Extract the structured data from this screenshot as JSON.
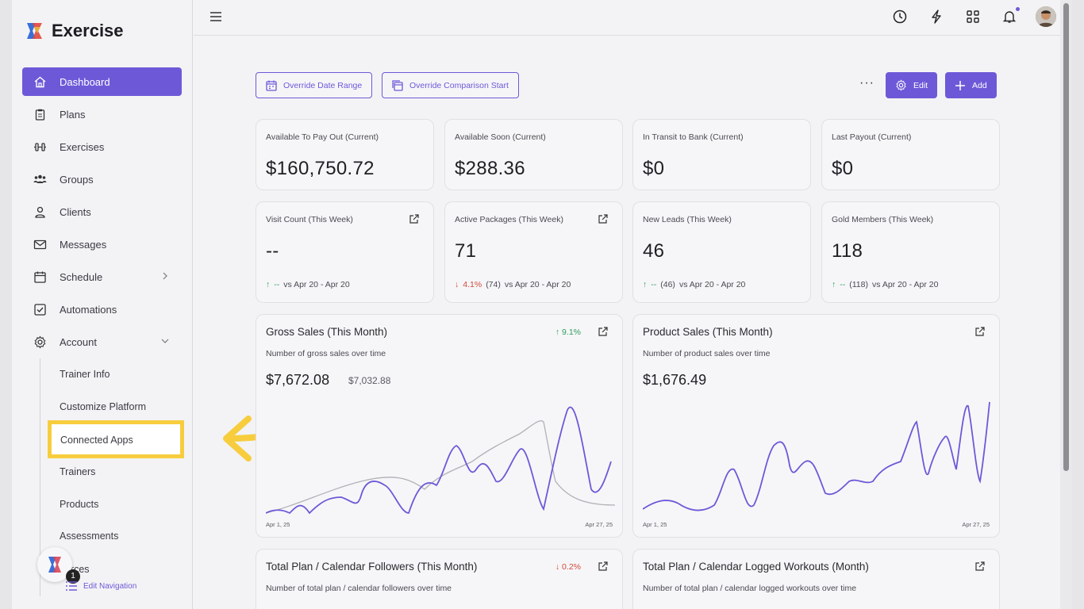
{
  "app": {
    "name": "Exercise"
  },
  "sidebar": {
    "items": [
      {
        "label": "Dashboard",
        "icon": "home-icon"
      },
      {
        "label": "Plans",
        "icon": "clipboard-icon"
      },
      {
        "label": "Exercises",
        "icon": "dumbbell-icon"
      },
      {
        "label": "Groups",
        "icon": "users-icon"
      },
      {
        "label": "Clients",
        "icon": "user-icon"
      },
      {
        "label": "Messages",
        "icon": "mail-icon"
      },
      {
        "label": "Schedule",
        "icon": "calendar-icon"
      },
      {
        "label": "Automations",
        "icon": "checkbox-icon"
      },
      {
        "label": "Account",
        "icon": "gear-icon"
      }
    ],
    "sub_items": [
      {
        "label": "Trainer Info"
      },
      {
        "label": "Customize Platform"
      },
      {
        "label": "Connected Apps"
      },
      {
        "label": "Trainers"
      },
      {
        "label": "Products"
      },
      {
        "label": "Assessments"
      },
      {
        "label": "ources"
      }
    ],
    "edit_navigation": "Edit Navigation",
    "help_badge": "1"
  },
  "toolbar": {
    "override_date_range": "Override Date Range",
    "override_comparison_start": "Override Comparison Start",
    "more": "···",
    "edit": "Edit",
    "add": "Add"
  },
  "stats": [
    {
      "label": "Available To Pay Out (Current)",
      "value": "$160,750.72"
    },
    {
      "label": "Available Soon (Current)",
      "value": "$288.36"
    },
    {
      "label": "In Transit to Bank (Current)",
      "value": "$0"
    },
    {
      "label": "Last Payout (Current)",
      "value": "$0"
    }
  ],
  "weekly": [
    {
      "label": "Visit Count (This Week)",
      "value": "--",
      "arrow": "↑",
      "pct": "--",
      "paren": "",
      "range": "vs Apr 20 - Apr 20",
      "dir": "up"
    },
    {
      "label": "Active Packages (This Week)",
      "value": "71",
      "arrow": "↓",
      "pct": "4.1%",
      "paren": "(74)",
      "range": "vs Apr 20 - Apr 20",
      "dir": "down"
    },
    {
      "label": "New Leads (This Week)",
      "value": "46",
      "arrow": "↑",
      "pct": "--",
      "paren": "(46)",
      "range": "vs Apr 20 - Apr 20",
      "dir": "up"
    },
    {
      "label": "Gold Members (This Week)",
      "value": "118",
      "arrow": "↑",
      "pct": "--",
      "paren": "(118)",
      "range": "vs Apr 20 - Apr 20",
      "dir": "up"
    }
  ],
  "charts": {
    "gross": {
      "title": "Gross Sales (This Month)",
      "subtitle": "Number of gross sales over time",
      "value": "$7,672.08",
      "compare": "$7,032.88",
      "pct": "↑ 9.1%",
      "x_start": "Apr 1, 25",
      "x_end": "Apr 27, 25"
    },
    "product": {
      "title": "Product Sales (This Month)",
      "subtitle": "Number of product sales over time",
      "value": "$1,676.49",
      "x_start": "Apr 1, 25",
      "x_end": "Apr 27, 25"
    },
    "followers": {
      "title": "Total Plan / Calendar Followers (This Month)",
      "subtitle": "Number of total plan / calendar followers over time",
      "pct": "↓ 0.2%"
    },
    "workouts": {
      "title": "Total Plan / Calendar Logged Workouts (Month)",
      "subtitle": "Number of total plan / calendar logged workouts over time"
    }
  },
  "colors": {
    "accent": "#6d59d8",
    "highlight": "#f7cd3e",
    "up": "#2e9e5b",
    "down": "#d24a3a"
  }
}
